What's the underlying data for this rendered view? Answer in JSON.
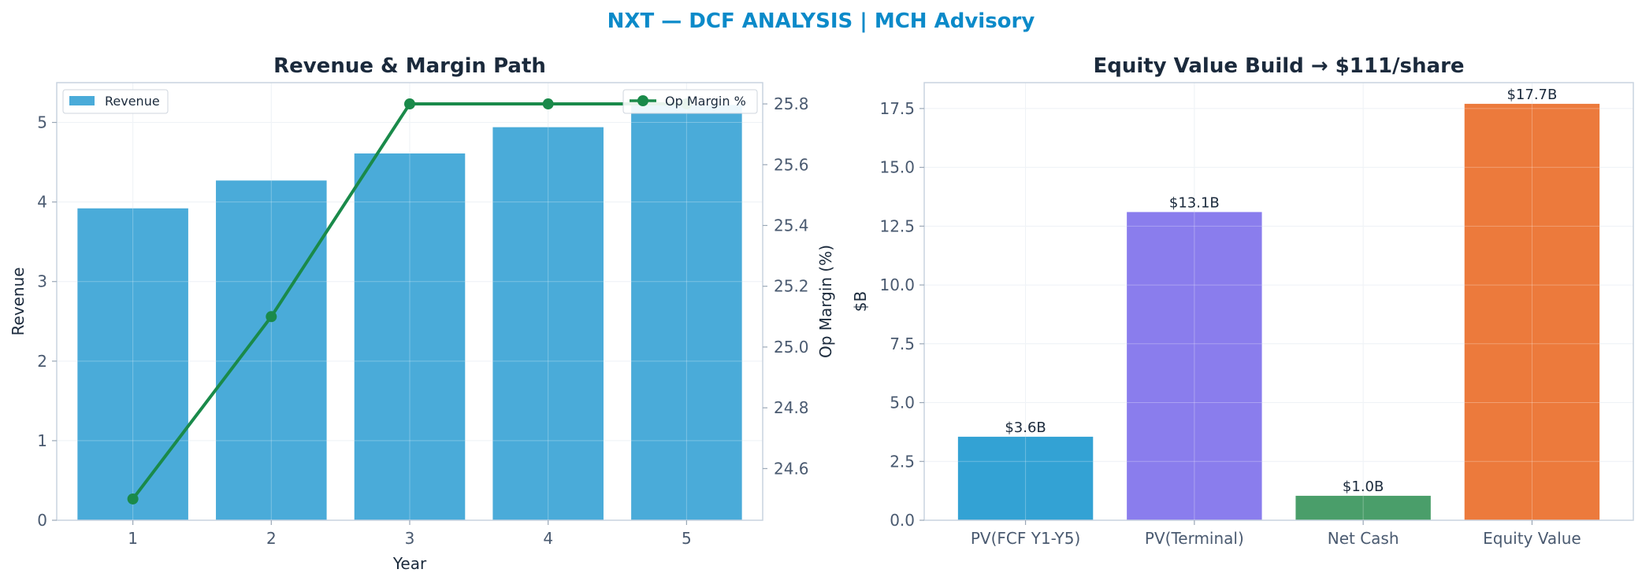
{
  "figure": {
    "suptitle": "NXT — DCF ANALYSIS | MCH Advisory"
  },
  "colors": {
    "revenue_bar": "#4aabd9",
    "margin_line": "#1a8a4a",
    "pv_fcf": "#33a2d4",
    "pv_terminal": "#8a7ded",
    "net_cash": "#4a9e6a",
    "equity_value": "#ec7a3c"
  },
  "chart_data": [
    {
      "type": "bar",
      "title": "Revenue & Margin Path",
      "xlabel": "Year",
      "ylabel": "Revenue",
      "y2label": "Op Margin (%)",
      "categories": [
        "1",
        "2",
        "3",
        "4",
        "5"
      ],
      "ylim": [
        0,
        5.5
      ],
      "yticks": [
        "0",
        "1",
        "2",
        "3",
        "4",
        "5"
      ],
      "y2lim": [
        24.43,
        25.87
      ],
      "y2ticks": [
        "24.6",
        "24.8",
        "25.0",
        "25.2",
        "25.4",
        "25.6",
        "25.8"
      ],
      "grid": true,
      "series": [
        {
          "name": "Revenue",
          "kind": "bar",
          "axis": "left",
          "values": [
            3.92,
            4.27,
            4.61,
            4.94,
            5.22
          ]
        },
        {
          "name": "Op Margin %",
          "kind": "line",
          "axis": "right",
          "marker": "circle",
          "values": [
            24.5,
            25.1,
            25.8,
            25.8,
            25.8
          ]
        }
      ],
      "legend": [
        {
          "label": "Revenue",
          "placement": "top-left"
        },
        {
          "label": "Op Margin %",
          "placement": "top-right"
        }
      ]
    },
    {
      "type": "bar",
      "title": "Equity Value Build → $111/share",
      "xlabel": "",
      "ylabel": "$B",
      "categories": [
        "PV(FCF Y1-Y5)",
        "PV(Terminal)",
        "Net Cash",
        "Equity Value"
      ],
      "values": [
        3.55,
        13.1,
        1.04,
        17.7
      ],
      "data_labels": [
        "$3.6B",
        "$13.1B",
        "$1.0B",
        "$17.7B"
      ],
      "bar_colors": [
        "#33a2d4",
        "#8a7ded",
        "#4a9e6a",
        "#ec7a3c"
      ],
      "ylim": [
        0,
        18.6
      ],
      "yticks": [
        "0.0",
        "2.5",
        "5.0",
        "7.5",
        "10.0",
        "12.5",
        "15.0",
        "17.5"
      ],
      "grid": true
    }
  ]
}
